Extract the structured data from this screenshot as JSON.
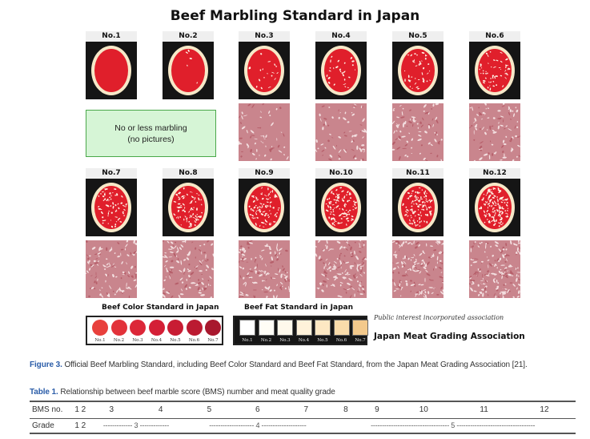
{
  "title": "Beef Marbling Standard in Japan",
  "panels": [
    {
      "label": "No.1",
      "flecks": 0,
      "photo": false
    },
    {
      "label": "No.2",
      "flecks": 5,
      "photo": false
    },
    {
      "label": "No.3",
      "flecks": 18,
      "photo": true
    },
    {
      "label": "No.4",
      "flecks": 30,
      "photo": true
    },
    {
      "label": "No.5",
      "flecks": 42,
      "photo": true
    },
    {
      "label": "No.6",
      "flecks": 55,
      "photo": true
    },
    {
      "label": "No.7",
      "flecks": 68,
      "photo": true
    },
    {
      "label": "No.8",
      "flecks": 80,
      "photo": true
    },
    {
      "label": "No.9",
      "flecks": 92,
      "photo": true
    },
    {
      "label": "No.10",
      "flecks": 104,
      "photo": true
    },
    {
      "label": "No.11",
      "flecks": 116,
      "photo": true
    },
    {
      "label": "No.12",
      "flecks": 128,
      "photo": true
    }
  ],
  "no_marbling": {
    "line1": "No or less marbling",
    "line2": "(no pictures)"
  },
  "color_standard": {
    "title": "Beef Color Standard in Japan",
    "swatches": [
      {
        "label": "No.1",
        "color": "#e8403c"
      },
      {
        "label": "No.2",
        "color": "#e2323a"
      },
      {
        "label": "No.3",
        "color": "#dc2738"
      },
      {
        "label": "No.4",
        "color": "#d41f36"
      },
      {
        "label": "No.5",
        "color": "#c81c33"
      },
      {
        "label": "No.6",
        "color": "#bb1a31"
      },
      {
        "label": "No.7",
        "color": "#a8182e"
      }
    ]
  },
  "fat_standard": {
    "title": "Beef Fat Standard in Japan",
    "swatches": [
      {
        "label": "No.1",
        "color": "#ffffff"
      },
      {
        "label": "No.2",
        "color": "#fffdf6"
      },
      {
        "label": "No.3",
        "color": "#fff9ec"
      },
      {
        "label": "No.4",
        "color": "#fff2da"
      },
      {
        "label": "No.5",
        "color": "#fde8c3"
      },
      {
        "label": "No.6",
        "color": "#f9dcab"
      },
      {
        "label": "No.7",
        "color": "#f3c98c"
      }
    ]
  },
  "association": {
    "subtitle": "Public interest incorporated association",
    "name": "Japan Meat Grading Association"
  },
  "figure_caption": {
    "label": "Figure 3.",
    "text": "Official Beef Marbling Standard, including Beef Color Standard and Beef Fat Standard, from the Japan Meat Grading Association [21]."
  },
  "table_caption": {
    "label": "Table 1.",
    "text": "Relationship between beef marble score (BMS) number and meat quality grade"
  },
  "table": {
    "header": [
      "BMS no.",
      "1",
      "2",
      "3",
      "4",
      "5",
      "6",
      "7",
      "8",
      "9",
      "10",
      "11",
      "12"
    ],
    "grade_label": "Grade",
    "grade_1": "1",
    "grade_2": "2",
    "grade_3": "------------- 3 -------------",
    "grade_4": "-------------------- 4 --------------------",
    "grade_5": "----------------------------------- 5 -----------------------------------"
  },
  "colors": {
    "meat_red": "#e01f2b",
    "fat_cream": "#f6e8c8",
    "no_marbling_fill": "#d6f5d6",
    "caption_label_blue": "#2a5ca8"
  }
}
